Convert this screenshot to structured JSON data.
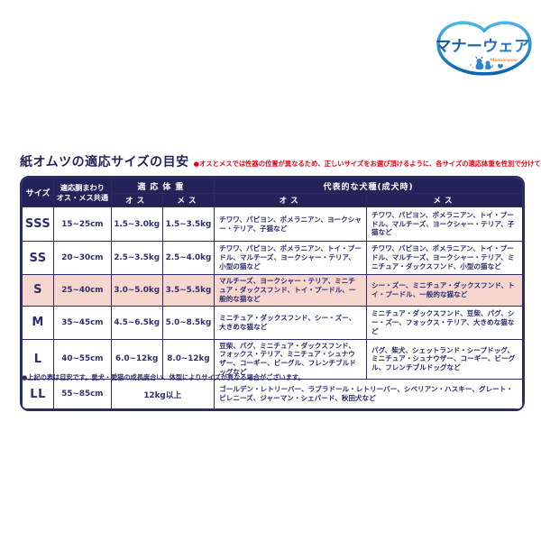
{
  "colors": {
    "navy": "#2b2b66",
    "header_bg": "#23235a",
    "body_text": "#2d2d6b",
    "highlight_pink": "#f8d6d0",
    "note_red": "#e60012",
    "logo_blue": "#0b7ac4",
    "logo_orange": "#f0912d"
  },
  "logo": {
    "brand": "マナーウェア",
    "subbrand": "Mannerwear"
  },
  "title": "紙オムツの適応サイズの目安",
  "title_note": "●オスとメスでは性器の位置が異なるため、正しいサイズをお選び頂けるように、各サイズの適応体重を性別で分けています。",
  "table": {
    "headers": {
      "size": "サイズ",
      "girth_line1": "適応胴まわり",
      "girth_line2": "オス・メス共通",
      "weight": "適応体重",
      "breeds": "代表的な犬種(成犬時)",
      "male": "オス",
      "female": "メス"
    },
    "rows": [
      {
        "size": "SSS",
        "girth": "15~25cm",
        "weight_male": "1.5~3.0kg",
        "weight_female": "1.5~3.5kg",
        "breeds_male": "チワワ、パピヨン、ポメラニアン、ヨークシャー・テリア、子猫など",
        "breeds_female": "チワワ、パピヨン、ポメラニアン、トイ・プードル、マルチーズ、ヨークシャー・テリア、子猫など",
        "highlight": false
      },
      {
        "size": "SS",
        "girth": "20~30cm",
        "weight_male": "2.5~3.5kg",
        "weight_female": "2.5~4.0kg",
        "breeds_male": "チワワ、パピヨン、ポメラニアン、トイ・プードル、マルチーズ、ヨークシャー・テリア、小型の猫など",
        "breeds_female": "チワワ、パピヨン、ポメラニアン、トイ・プードル、マルチーズ、ヨークシャー・テリア、ミニチュア・ダックスフンド、小型の猫など",
        "highlight": false
      },
      {
        "size": "S",
        "girth": "25~40cm",
        "weight_male": "3.0~5.0kg",
        "weight_female": "3.5~5.5kg",
        "breeds_male": "マルチーズ、ヨークシャー・テリア、ミニチュア・ダックスフンド、トイ・プードル、一般的な猫など",
        "breeds_female": "シー・ズー、ミニチュア・ダックスフンド、トイ・プードル、一般的な猫など",
        "highlight": true
      },
      {
        "size": "M",
        "girth": "35~45cm",
        "weight_male": "4.5~6.5kg",
        "weight_female": "5.0~8.5kg",
        "breeds_male": "ミニチュア・ダックスフンド、シー・ズー、大きめな猫など",
        "breeds_female": "ミニチュア・ダックスフンド、豆柴、パグ、シー・ズー、フォックス・テリア、大きめな猫など",
        "highlight": false
      },
      {
        "size": "L",
        "girth": "40~55cm",
        "weight_male": "6.0~12kg",
        "weight_female": "8.0~12kg",
        "breeds_male": "豆柴、パグ、ミニチュア・ダックスフンド、フォックス・テリア、ミニチュア・シュナウザー、コーギー、ビーグル、フレンチブルドッグなど",
        "breeds_female": "パグ、柴犬、シェットランド・シープドッグ、ミニチュア・シュナウザー、コーギー、ビーグル、フレンチブルドッグなど",
        "highlight": false
      },
      {
        "size": "LL",
        "girth": "55~85cm",
        "weight_common": "12kg以上",
        "breeds_common": "ゴールデン・レトリーバー、ラブラドール・レトリーバー、シベリアン・ハスキー、グレート・ピレニーズ、ジャーマン・シェパード、秋田犬など",
        "highlight": false
      }
    ]
  },
  "footnote": "●上記の表は目安です。愛犬・愛猫の成長度合い、体型によりサイズが異なる場合がございます。"
}
